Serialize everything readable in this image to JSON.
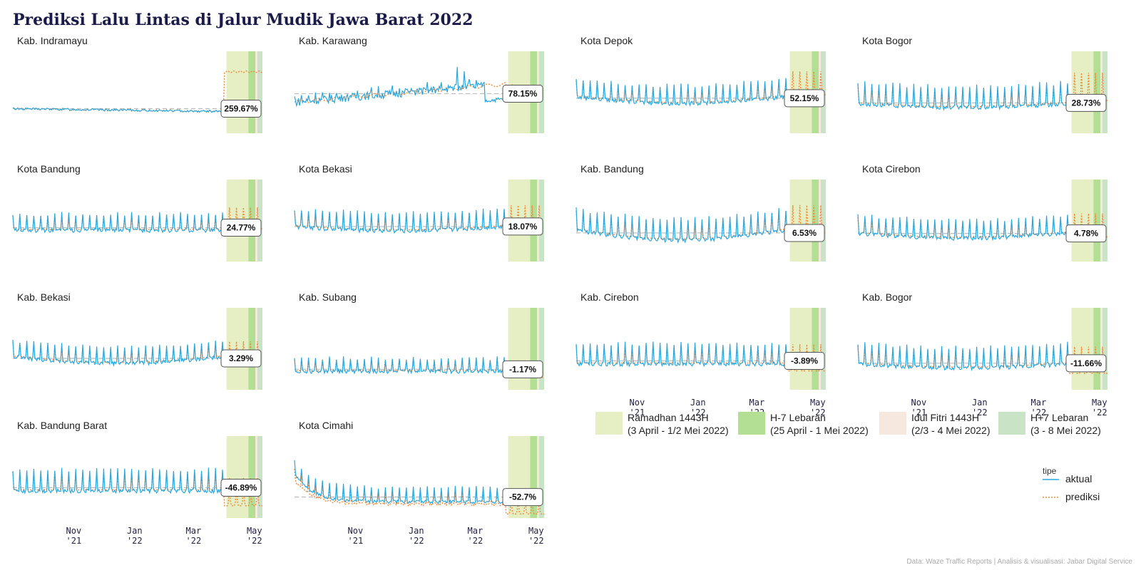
{
  "title": "Prediksi Lalu Lintas di Jalur Mudik Jawa Barat 2022",
  "caption": "Data: Waze Traffic Reports | Analisis & visualisasi: Jabar Digital Service",
  "colors": {
    "aktual": "#29a8e0",
    "prediksi": "#f08a3a",
    "baseline": "#bbbbbb",
    "ramadhan": "#e6efc4",
    "h7": "#b3df94",
    "idul_fitri": "#f7e8df",
    "h7plus": "#c8e3c6"
  },
  "legend": {
    "periods": [
      {
        "key": "ramadhan",
        "line1": "Ramadhan 1443H",
        "line2": "(3 April - 1/2 Mei 2022)"
      },
      {
        "key": "h7",
        "line1": "H-7 Lebaran",
        "line2": "(25 April - 1 Mei 2022)"
      },
      {
        "key": "idul_fitri",
        "line1": "Idul Fitri 1443H",
        "line2": "(2/3 - 4 Mei 2022)"
      },
      {
        "key": "h7plus",
        "line1": "H+7 Lebaran",
        "line2": "(3 - 8 Mei 2022)"
      }
    ],
    "type_title": "tipe",
    "types": [
      {
        "key": "aktual",
        "label": "aktual",
        "style": "solid"
      },
      {
        "key": "prediksi",
        "label": "prediksi",
        "style": "dotted"
      }
    ]
  },
  "chart_data": {
    "type": "line",
    "facet": "small-multiples",
    "x_range": [
      "2021-09-01",
      "2022-05-09"
    ],
    "x_ticks": [
      {
        "date": "2021-11-01",
        "line1": "Nov",
        "line2": "'21"
      },
      {
        "date": "2022-01-01",
        "line1": "Jan",
        "line2": "'22"
      },
      {
        "date": "2022-03-01",
        "line1": "Mar",
        "line2": "'22"
      },
      {
        "date": "2022-05-01",
        "line1": "May",
        "line2": "'22"
      }
    ],
    "periods": [
      {
        "key": "ramadhan",
        "start": "2022-04-03",
        "end": "2022-05-02"
      },
      {
        "key": "h7",
        "start": "2022-04-25",
        "end": "2022-05-02"
      },
      {
        "key": "idul_fitri",
        "start": "2022-05-02",
        "end": "2022-05-04"
      },
      {
        "key": "h7plus",
        "start": "2022-05-04",
        "end": "2022-05-09"
      }
    ],
    "prediction_start": "2022-04-01",
    "panels": [
      {
        "name": "Kab. Indramayu",
        "change": "259.67%",
        "pattern": "step",
        "base": 0.3,
        "amp": 0.025,
        "step": 0.75
      },
      {
        "name": "Kab. Karawang",
        "change": "78.15%",
        "pattern": "drop",
        "base": 0.38,
        "amp": 0.1,
        "trend": 0.22,
        "pred": 0.55
      },
      {
        "name": "Kota Depok",
        "change": "52.15%",
        "pattern": "weekly",
        "base": 0.52,
        "amp": 0.22,
        "trend": -0.08,
        "pred": 0.62
      },
      {
        "name": "Kota Bogor",
        "change": "28.73%",
        "pattern": "weekly",
        "base": 0.45,
        "amp": 0.26,
        "trend": -0.05,
        "pred": 0.55
      },
      {
        "name": "Kota Bandung",
        "change": "24.77%",
        "pattern": "weekly",
        "base": 0.45,
        "amp": 0.2,
        "trend": 0.0,
        "pred": 0.55
      },
      {
        "name": "Kota Bekasi",
        "change": "18.07%",
        "pattern": "weekly",
        "base": 0.5,
        "amp": 0.22,
        "trend": -0.05,
        "pred": 0.55
      },
      {
        "name": "Kab. Bandung",
        "change": "6.53%",
        "pattern": "weekly",
        "base": 0.47,
        "amp": 0.26,
        "trend": -0.12,
        "pred": 0.5
      },
      {
        "name": "Kota Cirebon",
        "change": "4.78%",
        "pattern": "weekly",
        "base": 0.42,
        "amp": 0.22,
        "trend": -0.06,
        "pred": 0.45
      },
      {
        "name": "Kab. Bekasi",
        "change": "3.29%",
        "pattern": "weekly",
        "base": 0.47,
        "amp": 0.2,
        "trend": -0.08,
        "pred": 0.48
      },
      {
        "name": "Kab. Subang",
        "change": "-1.17%",
        "pattern": "weekly",
        "base": 0.28,
        "amp": 0.16,
        "trend": 0.0,
        "pred": 0.3
      },
      {
        "name": "Kab. Cirebon",
        "change": "-3.89%",
        "pattern": "weekly",
        "base": 0.4,
        "amp": 0.25,
        "trend": 0.0,
        "pred": 0.38
      },
      {
        "name": "Kab. Bogor",
        "change": "-11.66%",
        "pattern": "weekly",
        "base": 0.4,
        "amp": 0.25,
        "trend": -0.05,
        "pred": 0.35
      },
      {
        "name": "Kab. Bandung Barat",
        "change": "-46.89%",
        "pattern": "weekly",
        "base": 0.42,
        "amp": 0.26,
        "trend": 0.0,
        "pred": 0.3
      },
      {
        "name": "Kota Cimahi",
        "change": "-52.7%",
        "pattern": "decay",
        "base": 0.25,
        "amp": 0.18,
        "trend": 0.0,
        "pred": 0.2
      }
    ]
  }
}
